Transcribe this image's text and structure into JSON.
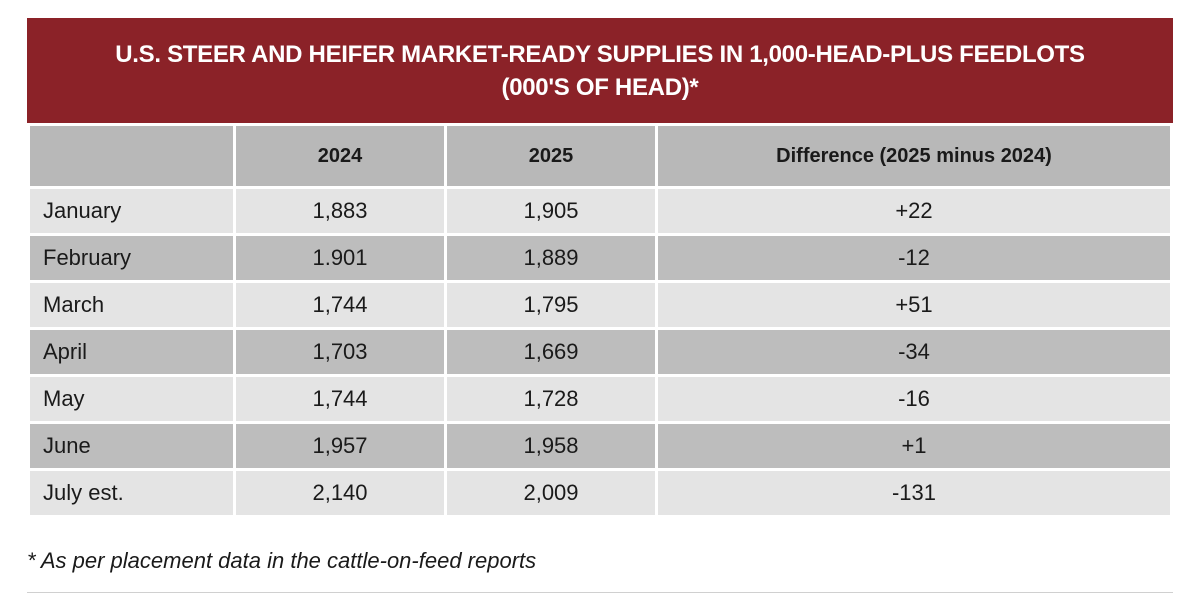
{
  "chart_data": {
    "type": "table",
    "title_line1": "U.S. STEER AND HEIFER MARKET-READY SUPPLIES IN 1,000-HEAD-PLUS FEEDLOTS",
    "title_line2": "(000'S OF HEAD)*",
    "columns": [
      "",
      "2024",
      "2025",
      "Difference (2025 minus 2024)"
    ],
    "rows": [
      {
        "month": "January",
        "y2024": "1,883",
        "y2025": "1,905",
        "diff": "+22"
      },
      {
        "month": "February",
        "y2024": "1.901",
        "y2025": "1,889",
        "diff": "-12"
      },
      {
        "month": "March",
        "y2024": "1,744",
        "y2025": "1,795",
        "diff": "+51"
      },
      {
        "month": "April",
        "y2024": "1,703",
        "y2025": "1,669",
        "diff": "-34"
      },
      {
        "month": "May",
        "y2024": "1,744",
        "y2025": "1,728",
        "diff": "-16"
      },
      {
        "month": "June",
        "y2024": "1,957",
        "y2025": "1,958",
        "diff": "+1"
      },
      {
        "month": "July est.",
        "y2024": "2,140",
        "y2025": "2,009",
        "diff": "-131"
      }
    ],
    "footnote": "* As per placement data in the cattle-on-feed reports"
  },
  "colors": {
    "title_bg": "#8b2228",
    "header_bg": "#b8b8b8",
    "row_light": "#e4e4e4",
    "row_dark": "#bdbdbd"
  }
}
